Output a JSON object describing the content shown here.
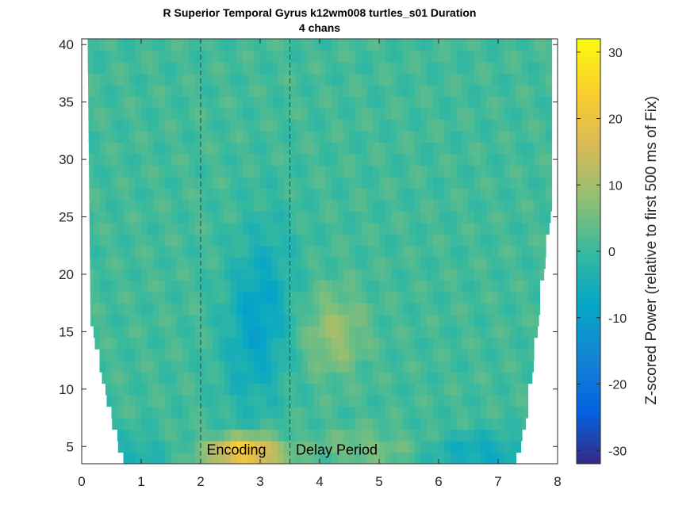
{
  "chart_data": {
    "type": "heatmap",
    "title": "R Superior Temporal Gyrus k12wm008 turtles_s01 Duration",
    "subtitle": "4 chans",
    "xlabel": "",
    "ylabel": "",
    "xlim": [
      0,
      8
    ],
    "ylim": [
      3.5,
      40.5
    ],
    "x_ticks": [
      0,
      1,
      2,
      3,
      4,
      5,
      6,
      7,
      8
    ],
    "y_ticks": [
      5,
      10,
      15,
      20,
      25,
      30,
      35,
      40
    ],
    "colorbar": {
      "label": "Z-scored Power (relative to first 500 ms of Fix)",
      "range": [
        -32,
        32
      ],
      "ticks": [
        30,
        20,
        10,
        0,
        -10,
        -20,
        -30
      ],
      "colormap": "parula"
    },
    "event_lines": [
      2,
      3.5
    ],
    "annotations": [
      {
        "text": "Encoding",
        "x": 2.1,
        "y": 4.5
      },
      {
        "text": "Delay Period",
        "x": 3.6,
        "y": 4.5
      }
    ],
    "frequency_range_hz": [
      4,
      40
    ],
    "time_range_s": [
      0.1,
      7.9
    ],
    "grid": false,
    "features": [
      {
        "name": "low-frequency increase (Encoding)",
        "time_s": [
          2.1,
          3.5
        ],
        "freq_hz": [
          4,
          6
        ],
        "peak_value": 25
      },
      {
        "name": "suppression after Encoding onset",
        "time_s": [
          2.2,
          3.6
        ],
        "freq_hz": [
          10,
          25
        ],
        "peak_value": -10
      },
      {
        "name": "increase in Delay Period",
        "time_s": [
          4.0,
          4.5
        ],
        "freq_hz": [
          12,
          18
        ],
        "peak_value": 8
      },
      {
        "name": "suppression late in trial",
        "time_s": [
          6.0,
          7.4
        ],
        "freq_hz": [
          4,
          6
        ],
        "peak_value": -8
      }
    ]
  }
}
